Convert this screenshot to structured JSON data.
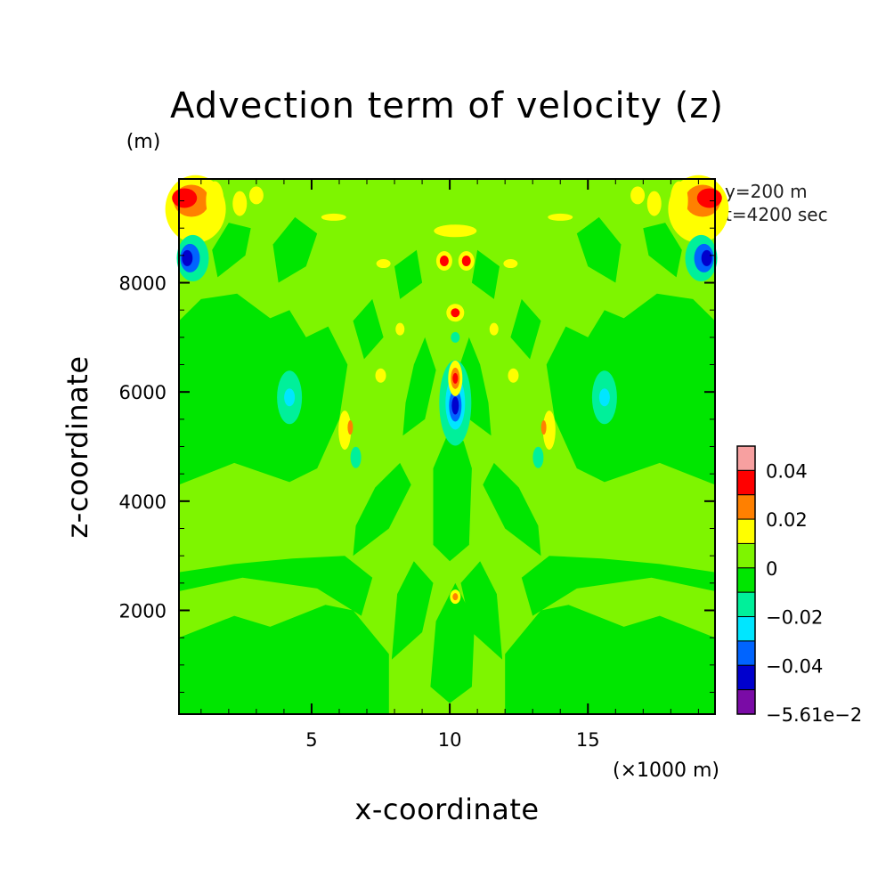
{
  "chart_data": {
    "type": "heatmap",
    "title": "Advection term of velocity (z)",
    "ylabel": "z-coordinate",
    "xlabel": "x-coordinate",
    "y_unit": "(m)",
    "x_unit": "(×1000 m)",
    "info_lines": [
      "y=200 m",
      "t=4200 sec"
    ],
    "xlim": [
      0.2,
      19.6
    ],
    "ylim": [
      100,
      9900
    ],
    "x_ticks": [
      5,
      10,
      15
    ],
    "x_tick_labels": [
      "5",
      "10",
      "15"
    ],
    "y_ticks": [
      2000,
      4000,
      6000,
      8000
    ],
    "y_tick_labels": [
      "2000",
      "4000",
      "6000",
      "8000"
    ],
    "colorbar": {
      "levels": [
        -0.0561,
        -0.05,
        -0.04,
        -0.03,
        -0.02,
        -0.01,
        0,
        0.01,
        0.02,
        0.03,
        0.04,
        0.05
      ],
      "colors": [
        "#7a0ba6",
        "#0000cd",
        "#0064ff",
        "#00e6ff",
        "#00f09a",
        "#00e600",
        "#7ef500",
        "#ffff00",
        "#ff8000",
        "#ff0000",
        "#f7a0a0"
      ],
      "labels": [
        "−5.61e−2",
        "−0.04",
        "−0.02",
        "0",
        "0.02",
        "0.04"
      ],
      "label_values": [
        -0.0561,
        -0.04,
        -0.02,
        0,
        0.02,
        0.04
      ]
    },
    "features": [
      {
        "x": 0.4,
        "z": 9500,
        "value": 0.04
      },
      {
        "x": 19.4,
        "z": 9500,
        "value": 0.04
      },
      {
        "x": 0.4,
        "z": 8450,
        "value": -0.05
      },
      {
        "x": 19.4,
        "z": 8450,
        "value": -0.05
      },
      {
        "x": 10.2,
        "z": 5750,
        "value": -0.05
      },
      {
        "x": 10.2,
        "z": 6200,
        "value": 0.04
      },
      {
        "x": 10.2,
        "z": 7450,
        "value": 0.03
      },
      {
        "x": 9.8,
        "z": 8400,
        "value": 0.03
      },
      {
        "x": 10.5,
        "z": 8400,
        "value": 0.03
      },
      {
        "x": 10.2,
        "z": 2250,
        "value": 0.02
      }
    ]
  }
}
